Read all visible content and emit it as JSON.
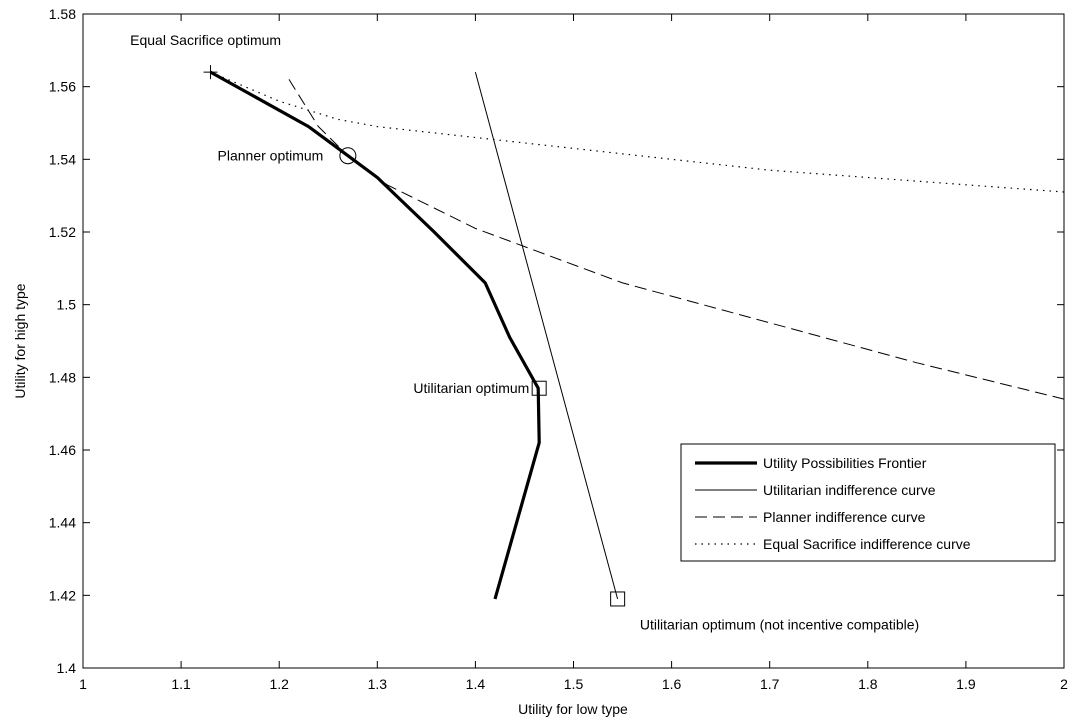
{
  "chart_data": {
    "type": "line",
    "xlabel": "Utility for low type",
    "ylabel": "Utility for high type",
    "xlim": [
      1,
      2
    ],
    "ylim": [
      1.4,
      1.58
    ],
    "xticks": [
      1,
      1.1,
      1.2,
      1.3,
      1.4,
      1.5,
      1.6,
      1.7,
      1.8,
      1.9,
      2
    ],
    "xtick_labels": [
      "1",
      "1.1",
      "1.2",
      "1.3",
      "1.4",
      "1.5",
      "1.6",
      "1.7",
      "1.8",
      "1.9",
      "2"
    ],
    "yticks": [
      1.4,
      1.42,
      1.44,
      1.46,
      1.48,
      1.5,
      1.52,
      1.54,
      1.56,
      1.58
    ],
    "ytick_labels": [
      "1.4",
      "1.42",
      "1.44",
      "1.46",
      "1.48",
      "1.5",
      "1.52",
      "1.54",
      "1.56",
      "1.58"
    ],
    "grid": false,
    "legend_position": "lower-right",
    "series": [
      {
        "name": "Utility Possibilities Frontier",
        "style": "thick-solid",
        "color": "#000000",
        "points": [
          [
            1.42,
            1.419
          ],
          [
            1.465,
            1.462
          ],
          [
            1.464,
            1.477
          ],
          [
            1.435,
            1.491
          ],
          [
            1.41,
            1.506
          ],
          [
            1.358,
            1.52
          ],
          [
            1.3,
            1.535
          ],
          [
            1.27,
            1.541
          ],
          [
            1.23,
            1.549
          ],
          [
            1.13,
            1.564
          ]
        ]
      },
      {
        "name": "Utilitarian indifference curve",
        "style": "thin-solid",
        "color": "#000000",
        "points": [
          [
            1.4,
            1.564
          ],
          [
            1.545,
            1.419
          ]
        ]
      },
      {
        "name": "Planner indifference curve",
        "style": "dashed",
        "color": "#000000",
        "points": [
          [
            1.21,
            1.562
          ],
          [
            1.24,
            1.549
          ],
          [
            1.27,
            1.541
          ],
          [
            1.31,
            1.533
          ],
          [
            1.4,
            1.521
          ],
          [
            1.55,
            1.506
          ],
          [
            1.7,
            1.495
          ],
          [
            1.85,
            1.484
          ],
          [
            2.0,
            1.474
          ]
        ]
      },
      {
        "name": "Equal Sacrifice indifference curve",
        "style": "dotted",
        "color": "#000000",
        "points": [
          [
            1.13,
            1.564
          ],
          [
            1.2,
            1.556
          ],
          [
            1.26,
            1.551
          ],
          [
            1.3,
            1.549
          ],
          [
            1.4,
            1.546
          ],
          [
            1.5,
            1.543
          ],
          [
            1.6,
            1.54
          ],
          [
            1.7,
            1.537
          ],
          [
            1.8,
            1.535
          ],
          [
            1.9,
            1.533
          ],
          [
            2.0,
            1.531
          ]
        ]
      }
    ],
    "markers": [
      {
        "name": "equal-sacrifice-optimum",
        "shape": "plus",
        "x": 1.13,
        "y": 1.564
      },
      {
        "name": "planner-optimum",
        "shape": "circle",
        "x": 1.27,
        "y": 1.541
      },
      {
        "name": "utilitarian-optimum",
        "shape": "square",
        "x": 1.465,
        "y": 1.477
      },
      {
        "name": "utilitarian-optimum-not-ic",
        "shape": "square",
        "x": 1.545,
        "y": 1.419
      }
    ],
    "annotations": [
      {
        "name": "equal-sacrifice-optimum-label",
        "text": "Equal Sacrifice optimum",
        "x": 1.125,
        "y": 1.5728,
        "anchor": "middle"
      },
      {
        "name": "planner-optimum-label",
        "text": "Planner optimum",
        "x": 1.245,
        "y": 1.541,
        "anchor": "end"
      },
      {
        "name": "utilitarian-optimum-label",
        "text": "Utilitarian optimum",
        "x": 1.455,
        "y": 1.477,
        "anchor": "end"
      },
      {
        "name": "utilitarian-optimum-not-ic-label",
        "text": "Utilitarian optimum (not incentive compatible)",
        "x": 1.71,
        "y": 1.412,
        "anchor": "middle"
      }
    ]
  }
}
